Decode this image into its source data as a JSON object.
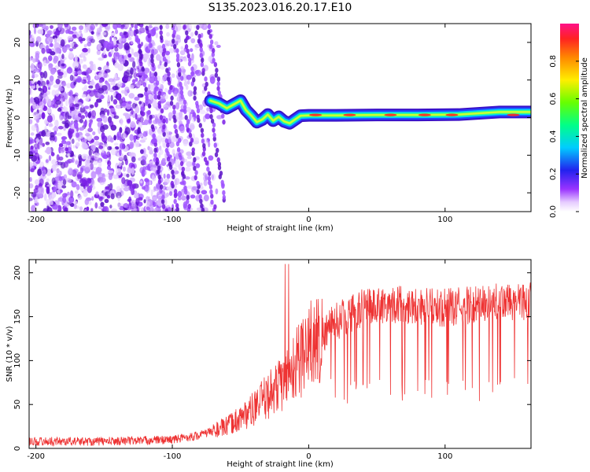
{
  "title": "S135.2023.016.20.17.E10",
  "chart_data": [
    {
      "type": "heatmap",
      "xlabel": "Height of straight line (km)",
      "ylabel": "Frequency (Hz)",
      "xlim": [
        -205,
        163
      ],
      "ylim": [
        -25,
        25
      ],
      "xticks": [
        -200,
        -100,
        0,
        100
      ],
      "yticks": [
        -20,
        -10,
        0,
        10,
        20
      ],
      "colorbar": {
        "label": "Normalized spectral amplitude",
        "ticks": [
          "0.0",
          "0.2",
          "0.4",
          "0.6",
          "0.8"
        ],
        "range": [
          0,
          1
        ]
      },
      "ridge": {
        "description_values": "frequency track (Hz) vs height (km)",
        "x": [
          -72,
          -66,
          -60,
          -55,
          -50,
          -46,
          -42,
          -38,
          -34,
          -30,
          -26,
          -22,
          -18,
          -14,
          -10,
          -6,
          0,
          20,
          50,
          80,
          110,
          140,
          163
        ],
        "y": [
          4.5,
          3.8,
          2.5,
          3.5,
          4.5,
          2.0,
          0.5,
          -1.2,
          -0.5,
          0.8,
          -0.8,
          0.2,
          -1.0,
          -1.5,
          -0.5,
          0.5,
          0.6,
          0.6,
          0.7,
          0.7,
          0.8,
          1.5,
          1.5
        ]
      }
    },
    {
      "type": "line",
      "xlabel": "Height of straight line (km)",
      "ylabel": "SNR (10 * v/v)",
      "xlim": [
        -205,
        163
      ],
      "ylim": [
        0,
        215
      ],
      "xticks": [
        -200,
        -100,
        0,
        100
      ],
      "yticks": [
        0,
        50,
        100,
        150,
        200
      ],
      "color": "#ee3333",
      "trend": {
        "x": [
          -205,
          -150,
          -100,
          -80,
          -60,
          -40,
          -20,
          0,
          20,
          40,
          60,
          100,
          130,
          163
        ],
        "y": [
          8,
          8,
          10,
          15,
          25,
          45,
          75,
          115,
          145,
          160,
          165,
          160,
          165,
          168
        ]
      }
    }
  ]
}
